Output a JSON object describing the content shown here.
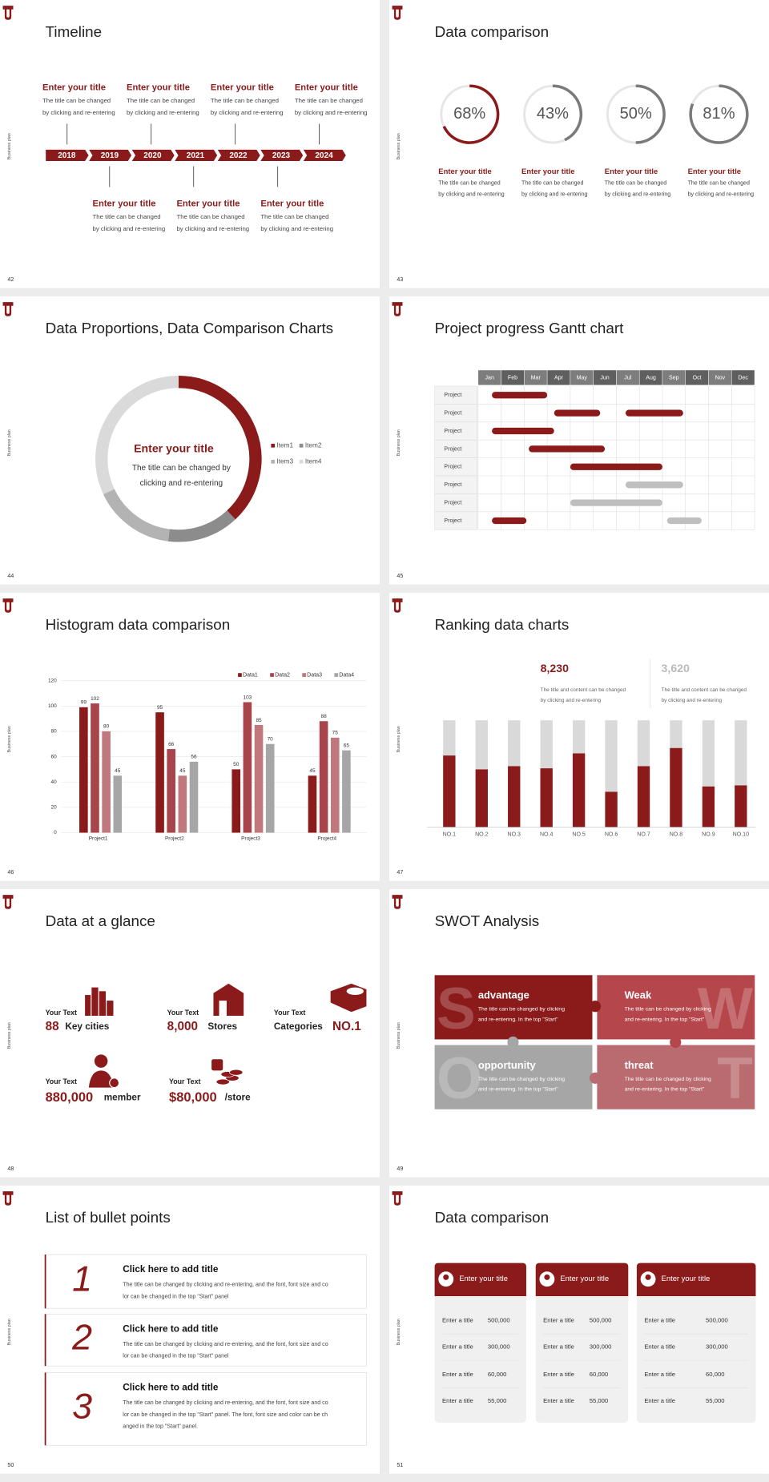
{
  "slides": [
    {
      "kind": "timeline",
      "page": "42",
      "side": "Business plan",
      "title": "Timeline",
      "years": [
        "2018",
        "2019",
        "2020",
        "2021",
        "2022",
        "2023",
        "2024"
      ],
      "items": [
        {
          "title": "Enter your title",
          "lines": [
            "The title can be changed",
            "by clicking and re-entering"
          ]
        },
        {
          "title": "Enter your title",
          "lines": [
            "The title can be changed",
            "by clicking and re-entering"
          ]
        },
        {
          "title": "Enter your title",
          "lines": [
            "The title can be changed",
            "by clicking and re-entering"
          ]
        },
        {
          "title": "Enter your title",
          "lines": [
            "The title can be changed",
            "by clicking and re-entering"
          ]
        },
        {
          "title": "Enter your title",
          "lines": [
            "The title can be changed",
            "by clicking and re-entering"
          ]
        },
        {
          "title": "Enter your title",
          "lines": [
            "The title can be changed",
            "by clicking and re-entering"
          ]
        },
        {
          "title": "Enter your title",
          "lines": [
            "The title can be changed",
            "by clicking and re-entering"
          ]
        }
      ]
    },
    {
      "kind": "rings",
      "page": "43",
      "side": "Business plan",
      "title": "Data comparison",
      "rings": [
        {
          "value": 68,
          "label": "68%"
        },
        {
          "value": 43,
          "label": "43%"
        },
        {
          "value": 50,
          "label": "50%"
        },
        {
          "value": 81,
          "label": "81%"
        }
      ],
      "items": [
        {
          "title": "Enter your title",
          "lines": [
            "The title can be changed",
            "by clicking and re-entering"
          ]
        },
        {
          "title": "Enter your title",
          "lines": [
            "The title can be changed",
            "by clicking and re-entering"
          ]
        },
        {
          "title": "Enter your title",
          "lines": [
            "The title can be changed",
            "by clicking and re-entering"
          ]
        },
        {
          "title": "Enter your title",
          "lines": [
            "The title can be changed",
            "by clicking and re-entering"
          ]
        }
      ]
    },
    {
      "kind": "donut",
      "page": "44",
      "side": "Business plan",
      "title": "Data Proportions, Data Comparison Charts",
      "center_title": "Enter your title",
      "center_lines": [
        "The title can be changed by",
        "clicking and re-entering"
      ],
      "segments": [
        {
          "name": "Item1",
          "value": 38,
          "color": "#8b1a1a"
        },
        {
          "name": "Item2",
          "value": 14,
          "color": "#8c8c8c"
        },
        {
          "name": "Item3",
          "value": 16,
          "color": "#b3b3b3"
        },
        {
          "name": "Item4",
          "value": 32,
          "color": "#dadada"
        }
      ]
    },
    {
      "kind": "gantt",
      "page": "45",
      "side": "Business plan",
      "title": "Project progress Gantt chart",
      "months": [
        "Jan",
        "Feb",
        "Mar",
        "Apr",
        "May",
        "Jun",
        "Jul",
        "Aug",
        "Sep",
        "Oct",
        "Nov",
        "Dec"
      ],
      "rows": [
        {
          "label": "Project",
          "bars": [
            {
              "start": 0.6,
              "end": 3,
              "color": "#8b1a1a"
            }
          ]
        },
        {
          "label": "Project",
          "bars": [
            {
              "start": 3.3,
              "end": 5.3,
              "color": "#8b1a1a"
            },
            {
              "start": 6.4,
              "end": 8.9,
              "color": "#8b1a1a"
            }
          ]
        },
        {
          "label": "Project",
          "bars": [
            {
              "start": 0.6,
              "end": 3.3,
              "color": "#8b1a1a"
            }
          ]
        },
        {
          "label": "Project",
          "bars": [
            {
              "start": 2.2,
              "end": 5.5,
              "color": "#8b1a1a"
            }
          ]
        },
        {
          "label": "Project",
          "bars": [
            {
              "start": 4,
              "end": 8,
              "color": "#8b1a1a"
            }
          ]
        },
        {
          "label": "Project",
          "bars": [
            {
              "start": 6.4,
              "end": 8.9,
              "color": "#bfbfbf"
            }
          ]
        },
        {
          "label": "Project",
          "bars": [
            {
              "start": 4,
              "end": 8,
              "color": "#bfbfbf"
            }
          ]
        },
        {
          "label": "Project",
          "bars": [
            {
              "start": 0.6,
              "end": 2.1,
              "color": "#8b1a1a"
            },
            {
              "start": 8.2,
              "end": 9.7,
              "color": "#bfbfbf"
            }
          ]
        }
      ]
    },
    {
      "kind": "histogram",
      "page": "46",
      "side": "Business plan",
      "title": "Histogram data comparison",
      "categories": [
        "Project1",
        "Project2",
        "Project3",
        "Project4"
      ],
      "series": [
        {
          "name": "Data1",
          "color": "#8b1a1a",
          "values": [
            99,
            95,
            50,
            45
          ]
        },
        {
          "name": "Data2",
          "color": "#a8454a",
          "values": [
            102,
            66,
            103,
            88
          ]
        },
        {
          "name": "Data3",
          "color": "#c0787c",
          "values": [
            80,
            45,
            85,
            75
          ]
        },
        {
          "name": "Data4",
          "color": "#a6a6a6",
          "values": [
            45,
            56,
            70,
            65
          ]
        }
      ],
      "ylim": [
        0,
        120
      ],
      "yticks": [
        0,
        20,
        40,
        60,
        80,
        100,
        120
      ]
    },
    {
      "kind": "ranking",
      "page": "47",
      "side": "Business plan",
      "title": "Ranking data charts",
      "highlights": [
        {
          "value": "8,230",
          "lines": [
            "The title and content can be changed",
            "by clicking and re-entering"
          ]
        },
        {
          "value": "3,620",
          "lines": [
            "The title and content can be changed",
            "by clicking and re-entering"
          ]
        }
      ],
      "categories": [
        "NO.1",
        "NO.2",
        "NO.3",
        "NO.4",
        "NO.5",
        "NO.6",
        "NO.7",
        "NO.8",
        "NO.9",
        "NO.10"
      ],
      "values": [
        67,
        54,
        57,
        55,
        69,
        33,
        57,
        74,
        38,
        39
      ],
      "ylim": [
        0,
        100
      ]
    },
    {
      "kind": "glance",
      "page": "48",
      "side": "Business plan",
      "title": "Data at a glance",
      "items": [
        {
          "label": "Your Text",
          "number": "88",
          "unit": "Key cities"
        },
        {
          "label": "Your Text",
          "number": "8,000",
          "unit": "Stores"
        },
        {
          "label": "Your Text",
          "number": "NO.1",
          "unit": "Categories"
        },
        {
          "label": "Your Text",
          "number": "880,000",
          "unit": "member"
        },
        {
          "label": "Your Text",
          "number": "$80,000",
          "unit": "/store"
        }
      ]
    },
    {
      "kind": "swot",
      "page": "49",
      "side": "Business plan",
      "title": "SWOT Analysis",
      "blocks": [
        {
          "letter": "S",
          "title": "advantage",
          "lines": [
            "The title can be changed by clicking",
            "and re-entering. In the top \"Start\""
          ]
        },
        {
          "letter": "W",
          "title": "Weak",
          "lines": [
            "The title can be changed by clicking",
            "and re-entering. In the top \"Start\""
          ]
        },
        {
          "letter": "O",
          "title": "opportunity",
          "lines": [
            "The title can be changed by clicking",
            "and re-entering. In the top \"Start\""
          ]
        },
        {
          "letter": "T",
          "title": "threat",
          "lines": [
            "The title can be changed by clicking",
            "and re-entering. In the top \"Start\""
          ]
        }
      ]
    },
    {
      "kind": "bullets",
      "page": "50",
      "side": "Business plan",
      "title": "List of bullet points",
      "items": [
        {
          "number": "1",
          "title": "Click here to add title",
          "lines": [
            "The title can be changed by clicking and re-entering, and the font, font size and co",
            "lor can be changed in the top \"Start\" panel"
          ]
        },
        {
          "number": "2",
          "title": "Click here to add title",
          "lines": [
            "The title can be changed by clicking and re-entering, and the font, font size and co",
            "lor can be changed in the top \"Start\" panel"
          ]
        },
        {
          "number": "3",
          "title": "Click here to add title",
          "lines": [
            "The title can be changed by clicking and re-entering, and the font, font size and co",
            "lor can be changed in the top \"Start\" panel. The font, font size and color can be ch",
            "anged in the top \"Start\" panel."
          ]
        }
      ]
    },
    {
      "kind": "cards",
      "page": "51",
      "side": "Business plan",
      "title": "Data comparison",
      "cards": [
        {
          "title": "Enter your title",
          "rows": [
            [
              "Enter a title",
              "500,000"
            ],
            [
              "Enter a title",
              "300,000"
            ],
            [
              "Enter a title",
              "60,000"
            ],
            [
              "Enter a title",
              "55,000"
            ]
          ]
        },
        {
          "title": "Enter your title",
          "rows": [
            [
              "Enter a title",
              "500,000"
            ],
            [
              "Enter a title",
              "300,000"
            ],
            [
              "Enter a title",
              "60,000"
            ],
            [
              "Enter a title",
              "55,000"
            ]
          ]
        },
        {
          "title": "Enter your title",
          "rows": [
            [
              "Enter a title",
              "500,000"
            ],
            [
              "Enter a title",
              "300,000"
            ],
            [
              "Enter a title",
              "60,000"
            ],
            [
              "Enter a title",
              "55,000"
            ]
          ]
        }
      ]
    }
  ]
}
